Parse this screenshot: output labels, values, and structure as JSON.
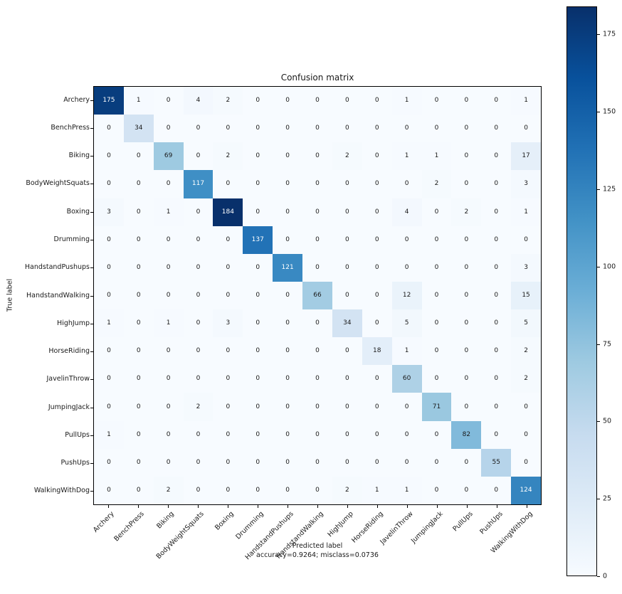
{
  "chart_data": {
    "type": "heatmap",
    "title": "Confusion matrix",
    "xlabel": "Predicted label",
    "xlabel_sub": "accuracy=0.9264; misclass=0.0736",
    "ylabel": "True label",
    "classes": [
      "Archery",
      "BenchPress",
      "Biking",
      "BodyWeightSquats",
      "Boxing",
      "Drumming",
      "HandstandPushups",
      "HandstandWalking",
      "HighJump",
      "HorseRiding",
      "JavelinThrow",
      "JumpingJack",
      "PullUps",
      "PushUps",
      "WalkingWithDog"
    ],
    "matrix": [
      [
        175,
        1,
        0,
        4,
        2,
        0,
        0,
        0,
        0,
        0,
        1,
        0,
        0,
        0,
        1
      ],
      [
        0,
        34,
        0,
        0,
        0,
        0,
        0,
        0,
        0,
        0,
        0,
        0,
        0,
        0,
        0
      ],
      [
        0,
        0,
        69,
        0,
        2,
        0,
        0,
        0,
        2,
        0,
        1,
        1,
        0,
        0,
        17
      ],
      [
        0,
        0,
        0,
        117,
        0,
        0,
        0,
        0,
        0,
        0,
        0,
        2,
        0,
        0,
        3
      ],
      [
        3,
        0,
        1,
        0,
        184,
        0,
        0,
        0,
        0,
        0,
        4,
        0,
        2,
        0,
        1
      ],
      [
        0,
        0,
        0,
        0,
        0,
        137,
        0,
        0,
        0,
        0,
        0,
        0,
        0,
        0,
        0
      ],
      [
        0,
        0,
        0,
        0,
        0,
        0,
        121,
        0,
        0,
        0,
        0,
        0,
        0,
        0,
        3
      ],
      [
        0,
        0,
        0,
        0,
        0,
        0,
        0,
        66,
        0,
        0,
        12,
        0,
        0,
        0,
        15
      ],
      [
        1,
        0,
        1,
        0,
        3,
        0,
        0,
        0,
        34,
        0,
        5,
        0,
        0,
        0,
        5
      ],
      [
        0,
        0,
        0,
        0,
        0,
        0,
        0,
        0,
        0,
        18,
        1,
        0,
        0,
        0,
        2
      ],
      [
        0,
        0,
        0,
        0,
        0,
        0,
        0,
        0,
        0,
        0,
        60,
        0,
        0,
        0,
        2
      ],
      [
        0,
        0,
        0,
        2,
        0,
        0,
        0,
        0,
        0,
        0,
        0,
        71,
        0,
        0,
        0
      ],
      [
        1,
        0,
        0,
        0,
        0,
        0,
        0,
        0,
        0,
        0,
        0,
        0,
        82,
        0,
        0
      ],
      [
        0,
        0,
        0,
        0,
        0,
        0,
        0,
        0,
        0,
        0,
        0,
        0,
        0,
        55,
        0
      ],
      [
        0,
        0,
        2,
        0,
        0,
        0,
        0,
        0,
        2,
        1,
        1,
        0,
        0,
        0,
        124
      ]
    ],
    "vmin": 0,
    "vmax": 184,
    "colormap": "Blues",
    "colorbar_ticks": [
      0,
      25,
      50,
      75,
      100,
      125,
      150,
      175
    ],
    "legend_position": "right-colorbar",
    "grid": false
  },
  "colors": {
    "cmap_anchors": [
      "#f7fbff",
      "#deebf7",
      "#c6dbef",
      "#9ecae1",
      "#6baed6",
      "#4292c6",
      "#2171b5",
      "#08519c",
      "#08306b"
    ],
    "cell_text_dark": "#1a1a1a",
    "cell_text_light": "#ffffff",
    "axis": "#000000",
    "background": "#ffffff"
  }
}
